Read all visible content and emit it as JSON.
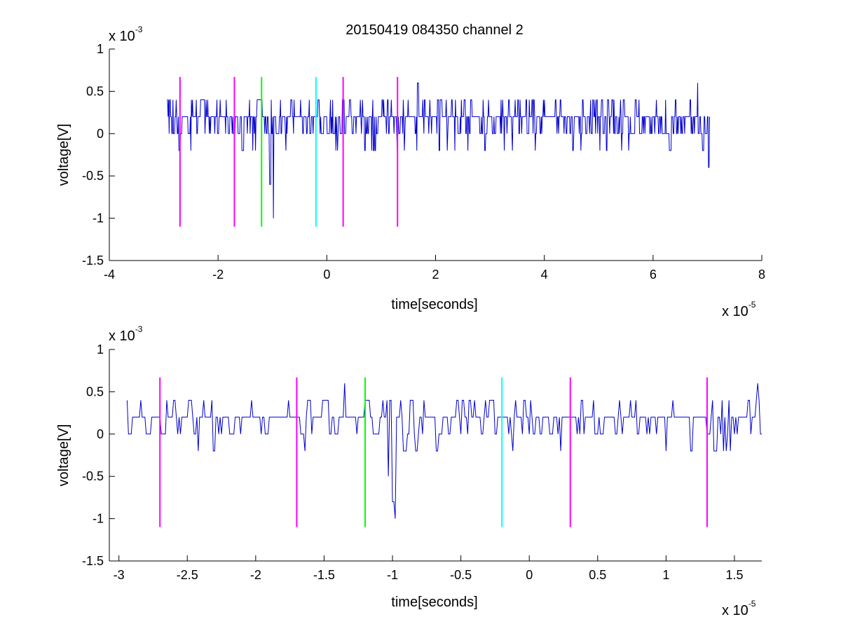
{
  "figure": {
    "title": "20150419 084350 channel 2"
  },
  "chart_data": [
    {
      "type": "line",
      "xlabel": "time[seconds]",
      "ylabel": "voltage[V]",
      "x_multiplier": "x 10",
      "x_exponent": "-5",
      "y_multiplier": "x 10",
      "y_exponent": "-3",
      "xlim": [
        -4,
        8
      ],
      "ylim": [
        -1.5,
        1
      ],
      "xticks": [
        -4,
        -2,
        0,
        2,
        4,
        6,
        8
      ],
      "xtick_labels": [
        "-4",
        "-2",
        "0",
        "2",
        "4",
        "6",
        "8"
      ],
      "yticks": [
        1,
        0.5,
        0,
        -0.5,
        -1,
        -1.5
      ],
      "ytick_labels": [
        "1",
        "0.5",
        "0",
        "-0.5",
        "-1",
        "-1.5"
      ],
      "signal": {
        "color": "#0000cc",
        "x_range": [
          -2.94,
          7.04
        ],
        "sample_count": 1000,
        "levels": [
          -0.2,
          0,
          0.2,
          0.4
        ],
        "spikes": [
          {
            "x": -0.98,
            "y": -1.0
          },
          {
            "x": -1.05,
            "y": -0.6
          },
          {
            "x": 1.67,
            "y": 0.6
          },
          {
            "x": 6.82,
            "y": 0.6
          },
          {
            "x": 7.02,
            "y": -0.4
          }
        ]
      },
      "markers": [
        {
          "x": -2.7,
          "color": "#ff00ff"
        },
        {
          "x": -1.7,
          "color": "#ff00ff"
        },
        {
          "x": -1.2,
          "color": "#00ff00"
        },
        {
          "x": -0.2,
          "color": "#00ffff"
        },
        {
          "x": 0.3,
          "color": "#ff00ff"
        },
        {
          "x": 1.3,
          "color": "#ff00ff"
        }
      ],
      "marker_range": [
        -1.1,
        0.67
      ]
    },
    {
      "type": "line",
      "xlabel": "time[seconds]",
      "ylabel": "voltage[V]",
      "x_multiplier": "x 10",
      "x_exponent": "-5",
      "y_multiplier": "x 10",
      "y_exponent": "-3",
      "xlim": [
        -3.07,
        1.7
      ],
      "ylim": [
        -1.5,
        1
      ],
      "xticks": [
        -3,
        -2.5,
        -2,
        -1.5,
        -1,
        -0.5,
        0,
        0.5,
        1,
        1.5
      ],
      "xtick_labels": [
        "-3",
        "-2.5",
        "-2",
        "-1.5",
        "-1",
        "-0.5",
        "0",
        "0.5",
        "1",
        "1.5"
      ],
      "yticks": [
        1,
        0.5,
        0,
        -0.5,
        -1,
        -1.5
      ],
      "ytick_labels": [
        "1",
        "0.5",
        "0",
        "-0.5",
        "-1",
        "-1.5"
      ],
      "signal": {
        "color": "#0000cc",
        "x_range": [
          -2.94,
          1.7
        ],
        "sample_count": 465,
        "levels": [
          -0.2,
          0,
          0.2,
          0.4
        ],
        "spikes": [
          {
            "x": -0.98,
            "y": -1.0
          },
          {
            "x": -1.0,
            "y": -0.8
          },
          {
            "x": -1.03,
            "y": -0.5
          },
          {
            "x": -1.35,
            "y": 0.6
          },
          {
            "x": 1.67,
            "y": 0.6
          }
        ]
      },
      "markers": [
        {
          "x": -2.7,
          "color": "#ff00ff"
        },
        {
          "x": -1.7,
          "color": "#ff00ff"
        },
        {
          "x": -1.2,
          "color": "#00ff00"
        },
        {
          "x": -0.2,
          "color": "#00ffff"
        },
        {
          "x": 0.3,
          "color": "#ff00ff"
        },
        {
          "x": 1.3,
          "color": "#ff00ff"
        }
      ],
      "marker_range": [
        -1.1,
        0.67
      ]
    }
  ]
}
